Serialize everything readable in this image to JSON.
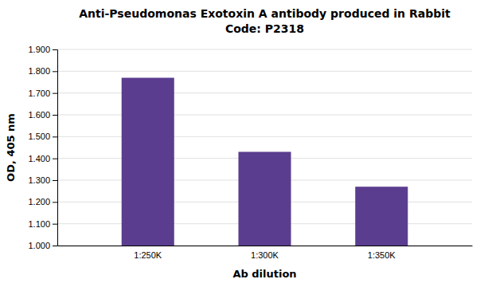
{
  "chart_data": {
    "type": "bar",
    "title": "Anti-Pseudomonas Exotoxin A antibody produced in Rabbit",
    "subtitle": "Code: P2318",
    "categories": [
      "1:250K",
      "1:300K",
      "1:350K"
    ],
    "values": [
      1.77,
      1.43,
      1.27
    ],
    "color": "#5b3d8f",
    "x_label": "Ab dilution",
    "y_label": "OD, 405 nm",
    "ylim": [
      1.0,
      1.9
    ],
    "yticks": [
      {
        "value": 1.0,
        "label": "1.000"
      },
      {
        "value": 1.1,
        "label": "1.100"
      },
      {
        "value": 1.2,
        "label": "1.200"
      },
      {
        "value": 1.3,
        "label": "1.300"
      },
      {
        "value": 1.4,
        "label": "1.400"
      },
      {
        "value": 1.5,
        "label": "1.500"
      },
      {
        "value": 1.6,
        "label": "1.600"
      },
      {
        "value": 1.7,
        "label": "1.700"
      },
      {
        "value": 1.8,
        "label": "1.800"
      },
      {
        "value": 1.9,
        "label": "1.900"
      }
    ],
    "grid": true
  }
}
